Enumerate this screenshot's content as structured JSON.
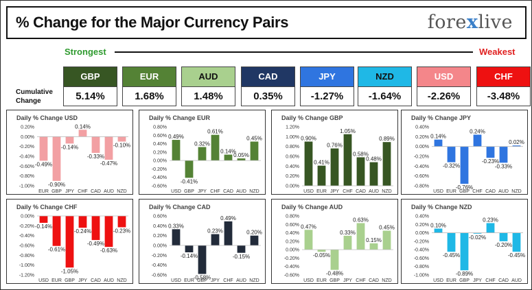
{
  "header": {
    "title": "% Change for the Major Currency Pairs",
    "logo_left": "fore",
    "logo_x": "x",
    "logo_right": "live"
  },
  "legend": {
    "strongest": "Strongest",
    "weakest": "Weakest"
  },
  "cumulative_label": "Cumulative Change",
  "currencies": [
    {
      "code": "GBP",
      "value": "5.14%",
      "color": "#375623",
      "text_color": "#ffffff"
    },
    {
      "code": "EUR",
      "value": "1.68%",
      "color": "#548235",
      "text_color": "#ffffff"
    },
    {
      "code": "AUD",
      "value": "1.48%",
      "color": "#a9d08e",
      "text_color": "#111111"
    },
    {
      "code": "CAD",
      "value": "0.35%",
      "color": "#203764",
      "text_color": "#ffffff"
    },
    {
      "code": "JPY",
      "value": "-1.27%",
      "color": "#2f75e0",
      "text_color": "#ffffff"
    },
    {
      "code": "NZD",
      "value": "-1.64%",
      "color": "#1fb8e6",
      "text_color": "#111111"
    },
    {
      "code": "USD",
      "value": "-2.26%",
      "color": "#f4868a",
      "text_color": "#ffffff"
    },
    {
      "code": "CHF",
      "value": "-3.48%",
      "color": "#ee1111",
      "text_color": "#ffffff"
    }
  ],
  "chart_data": [
    {
      "type": "bar",
      "title": "Daily % Change USD",
      "bar_color": "#f2a0a3",
      "categories": [
        "EUR",
        "GBP",
        "JPY",
        "CHF",
        "CAD",
        "AUD",
        "NZD"
      ],
      "values": [
        -0.49,
        -0.9,
        -0.14,
        0.14,
        -0.33,
        -0.47,
        -0.1
      ],
      "labels": [
        "-0.49%",
        "-0.90%",
        "-0.14%",
        "0.14%",
        "-0.33%",
        "-0.47%",
        "-0.10%"
      ],
      "ylim": [
        -1.0,
        0.2
      ],
      "ticks": [
        0.2,
        0,
        -0.2,
        -0.4,
        -0.6,
        -0.8,
        -1.0
      ],
      "tick_labels": [
        "0.20%",
        "0.00%",
        "-0.20%",
        "-0.40%",
        "-0.60%",
        "-0.80%",
        "-1.00%"
      ]
    },
    {
      "type": "bar",
      "title": "Daily % Change EUR",
      "bar_color": "#548235",
      "categories": [
        "USD",
        "GBP",
        "JPY",
        "CHF",
        "CAD",
        "AUD",
        "NZD"
      ],
      "values": [
        0.49,
        -0.41,
        0.32,
        0.61,
        0.14,
        0.05,
        0.45
      ],
      "labels": [
        "0.49%",
        "-0.41%",
        "0.32%",
        "0.61%",
        "0.14%",
        "0.05%",
        "0.45%"
      ],
      "ylim": [
        -0.6,
        0.8
      ],
      "ticks": [
        0.8,
        0.6,
        0.4,
        0.2,
        0,
        -0.2,
        -0.4,
        -0.6
      ],
      "tick_labels": [
        "0.80%",
        "0.60%",
        "0.40%",
        "0.20%",
        "0.00%",
        "-0.20%",
        "-0.40%",
        "-0.60%"
      ]
    },
    {
      "type": "bar",
      "title": "Daily % Change GBP",
      "bar_color": "#375623",
      "categories": [
        "USD",
        "EUR",
        "JPY",
        "CHF",
        "CAD",
        "AUD",
        "NZD"
      ],
      "values": [
        0.9,
        0.41,
        0.76,
        1.05,
        0.58,
        0.48,
        0.89
      ],
      "labels": [
        "0.90%",
        "0.41%",
        "0.76%",
        "1.05%",
        "0.58%",
        "0.48%",
        "0.89%"
      ],
      "ylim": [
        0,
        1.2
      ],
      "ticks": [
        1.2,
        1.0,
        0.8,
        0.6,
        0.4,
        0.2,
        0
      ],
      "tick_labels": [
        "1.20%",
        "1.00%",
        "0.80%",
        "0.60%",
        "0.40%",
        "0.20%",
        "0.00%"
      ]
    },
    {
      "type": "bar",
      "title": "Daily % Change JPY",
      "bar_color": "#2f75e0",
      "categories": [
        "USD",
        "EUR",
        "GBP",
        "CHF",
        "CAD",
        "AUD",
        "NZD"
      ],
      "values": [
        0.14,
        -0.32,
        -0.76,
        0.24,
        -0.23,
        -0.33,
        0.02
      ],
      "labels": [
        "0.14%",
        "-0.32%",
        "-0.76%",
        "0.24%",
        "-0.23%",
        "-0.33%",
        "0.02%"
      ],
      "ylim": [
        -0.8,
        0.4
      ],
      "ticks": [
        0.4,
        0.2,
        0,
        -0.2,
        -0.4,
        -0.6,
        -0.8
      ],
      "tick_labels": [
        "0.40%",
        "0.20%",
        "0.00%",
        "-0.20%",
        "-0.40%",
        "-0.60%",
        "-0.80%"
      ]
    },
    {
      "type": "bar",
      "title": "Daily % Change CHF",
      "bar_color": "#ee1111",
      "categories": [
        "USD",
        "EUR",
        "GBP",
        "JPY",
        "CAD",
        "AUD",
        "NZD"
      ],
      "values": [
        -0.14,
        -0.61,
        -1.05,
        -0.24,
        -0.49,
        -0.63,
        -0.23
      ],
      "labels": [
        "-0.14%",
        "-0.61%",
        "-1.05%",
        "-0.24%",
        "-0.49%",
        "-0.63%",
        "-0.23%"
      ],
      "ylim": [
        -1.2,
        0
      ],
      "ticks": [
        0,
        -0.2,
        -0.4,
        -0.6,
        -0.8,
        -1.0,
        -1.2
      ],
      "tick_labels": [
        "0.00%",
        "-0.20%",
        "-0.40%",
        "-0.60%",
        "-0.80%",
        "-1.00%",
        "-1.20%"
      ]
    },
    {
      "type": "bar",
      "title": "Daily % Change CAD",
      "bar_color": "#222b3a",
      "categories": [
        "USD",
        "EUR",
        "GBP",
        "JPY",
        "CHF",
        "AUD",
        "NZD"
      ],
      "values": [
        0.33,
        -0.14,
        -0.58,
        0.23,
        0.49,
        -0.15,
        0.2
      ],
      "labels": [
        "0.33%",
        "-0.14%",
        "-0.58%",
        "0.23%",
        "0.49%",
        "-0.15%",
        "0.20%"
      ],
      "ylim": [
        -0.6,
        0.6
      ],
      "ticks": [
        0.6,
        0.4,
        0.2,
        0,
        -0.2,
        -0.4,
        -0.6
      ],
      "tick_labels": [
        "0.60%",
        "0.40%",
        "0.20%",
        "0.00%",
        "-0.20%",
        "-0.40%",
        "-0.60%"
      ]
    },
    {
      "type": "bar",
      "title": "Daily % Change AUD",
      "bar_color": "#a9d08e",
      "categories": [
        "USD",
        "EUR",
        "GBP",
        "JPY",
        "CHF",
        "CAD",
        "NZD"
      ],
      "values": [
        0.47,
        -0.05,
        -0.48,
        0.33,
        0.63,
        0.15,
        0.45
      ],
      "labels": [
        "0.47%",
        "-0.05%",
        "-0.48%",
        "0.33%",
        "0.63%",
        "0.15%",
        "0.45%"
      ],
      "ylim": [
        -0.6,
        0.8
      ],
      "ticks": [
        0.8,
        0.6,
        0.4,
        0.2,
        0,
        -0.2,
        -0.4,
        -0.6
      ],
      "tick_labels": [
        "0.80%",
        "0.60%",
        "0.40%",
        "0.20%",
        "0.00%",
        "-0.20%",
        "-0.40%",
        "-0.60%"
      ]
    },
    {
      "type": "bar",
      "title": "Daily % Change NZD",
      "bar_color": "#1fb8e6",
      "categories": [
        "USD",
        "EUR",
        "GBP",
        "JPY",
        "CHF",
        "CAD",
        "AUD"
      ],
      "values": [
        0.1,
        -0.45,
        -0.89,
        -0.02,
        0.23,
        -0.2,
        -0.45
      ],
      "labels": [
        "0.10%",
        "-0.45%",
        "-0.89%",
        "-0.02%",
        "0.23%",
        "-0.20%",
        "-0.45%"
      ],
      "ylim": [
        -1.0,
        0.4
      ],
      "ticks": [
        0.4,
        0.2,
        0,
        -0.2,
        -0.4,
        -0.6,
        -0.8,
        -1.0
      ],
      "tick_labels": [
        "0.40%",
        "0.20%",
        "0.00%",
        "-0.20%",
        "-0.40%",
        "-0.60%",
        "-0.80%",
        "-1.00%"
      ]
    }
  ]
}
